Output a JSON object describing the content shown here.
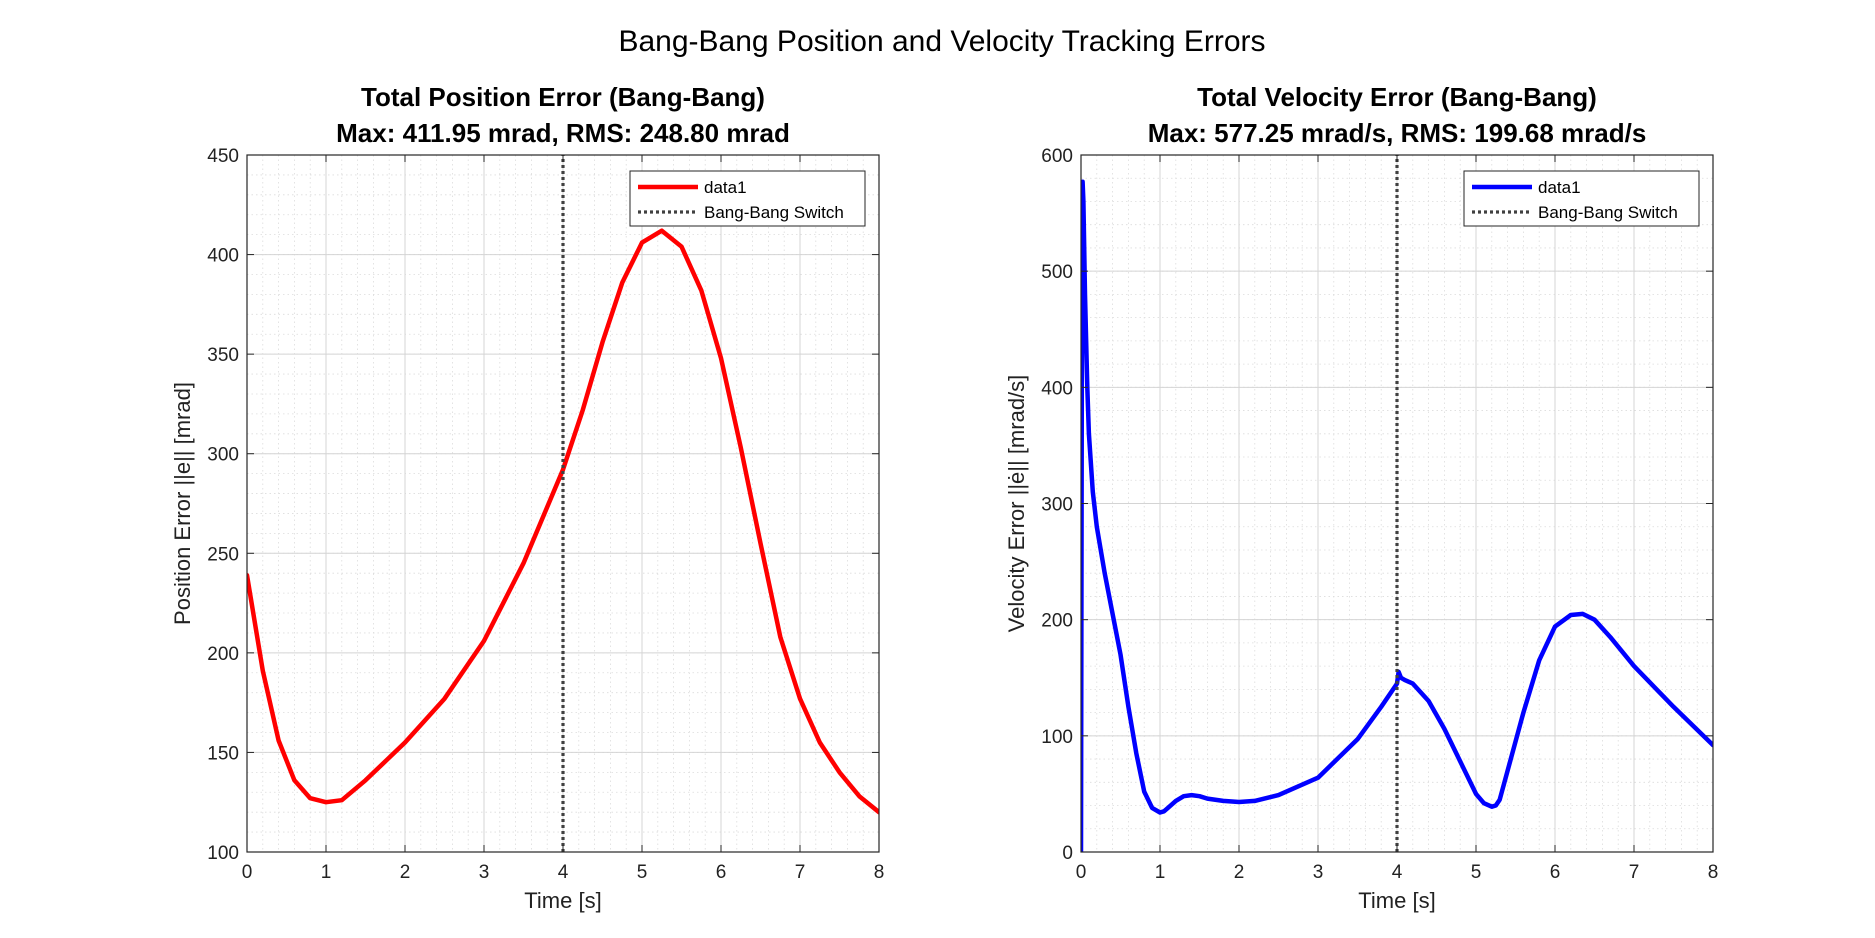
{
  "figure": {
    "suptitle": "Bang-Bang Position and Velocity Tracking Errors"
  },
  "chart_data": [
    {
      "type": "line",
      "title_line1": "Total Position Error (Bang-Bang)",
      "title_line2": "Max: 411.95 mrad, RMS: 248.80 mrad",
      "xlabel": "Time [s]",
      "ylabel": "Position Error ||e|| [mrad]",
      "xlim": [
        0,
        8
      ],
      "ylim": [
        100,
        450
      ],
      "xticks": [
        0,
        1,
        2,
        3,
        4,
        5,
        6,
        7,
        8
      ],
      "yticks": [
        100,
        150,
        200,
        250,
        300,
        350,
        400,
        450
      ],
      "grid": true,
      "minor_grid": true,
      "legend_position": "top-right",
      "series": [
        {
          "name": "data1",
          "color": "#ff0000",
          "x": [
            0,
            0.2,
            0.4,
            0.6,
            0.8,
            1.0,
            1.2,
            1.5,
            2.0,
            2.5,
            3.0,
            3.5,
            4.0,
            4.25,
            4.5,
            4.75,
            5.0,
            5.25,
            5.5,
            5.75,
            6.0,
            6.25,
            6.5,
            6.75,
            7.0,
            7.25,
            7.5,
            7.75,
            8.0
          ],
          "y": [
            239,
            191,
            156,
            136,
            127,
            125,
            126,
            136,
            155,
            177,
            206,
            245,
            292,
            322,
            356,
            386,
            406,
            412,
            404,
            382,
            348,
            303,
            255,
            208,
            177,
            155,
            140,
            128,
            120
          ]
        },
        {
          "name": "Bang-Bang Switch",
          "color": "#404040",
          "style": "dotted",
          "x": [
            4,
            4
          ],
          "y": [
            100,
            450
          ]
        }
      ]
    },
    {
      "type": "line",
      "title_line1": "Total Velocity Error (Bang-Bang)",
      "title_line2": "Max: 577.25 mrad/s, RMS: 199.68 mrad/s",
      "xlabel": "Time [s]",
      "ylabel": "Velocity Error ||ė|| [mrad/s]",
      "xlim": [
        0,
        8
      ],
      "ylim": [
        0,
        600
      ],
      "xticks": [
        0,
        1,
        2,
        3,
        4,
        5,
        6,
        7,
        8
      ],
      "yticks": [
        0,
        100,
        200,
        300,
        400,
        500,
        600
      ],
      "grid": true,
      "minor_grid": true,
      "legend_position": "top-right",
      "series": [
        {
          "name": "data1",
          "color": "#0000ff",
          "x": [
            0,
            0.005,
            0.01,
            0.02,
            0.03,
            0.05,
            0.08,
            0.1,
            0.15,
            0.2,
            0.3,
            0.4,
            0.5,
            0.6,
            0.7,
            0.8,
            0.9,
            1.0,
            1.05,
            1.1,
            1.2,
            1.3,
            1.4,
            1.5,
            1.6,
            1.8,
            2.0,
            2.2,
            2.5,
            3.0,
            3.5,
            3.8,
            4.0,
            4.02,
            4.05,
            4.1,
            4.2,
            4.4,
            4.6,
            4.8,
            5.0,
            5.1,
            5.2,
            5.25,
            5.3,
            5.4,
            5.6,
            5.8,
            6.0,
            6.2,
            6.35,
            6.5,
            6.7,
            7.0,
            7.5,
            8.0
          ],
          "y": [
            0,
            200,
            400,
            577,
            560,
            480,
            400,
            360,
            310,
            280,
            240,
            205,
            170,
            125,
            85,
            52,
            38,
            34,
            35,
            38,
            44,
            48,
            49,
            48,
            46,
            44,
            43,
            44,
            49,
            64,
            97,
            125,
            145,
            155,
            150,
            148,
            145,
            130,
            106,
            78,
            50,
            42,
            39,
            40,
            45,
            70,
            120,
            165,
            194,
            204,
            205,
            200,
            185,
            160,
            125,
            92
          ]
        },
        {
          "name": "Bang-Bang Switch",
          "color": "#404040",
          "style": "dotted",
          "x": [
            4,
            4
          ],
          "y": [
            0,
            600
          ]
        }
      ]
    }
  ]
}
